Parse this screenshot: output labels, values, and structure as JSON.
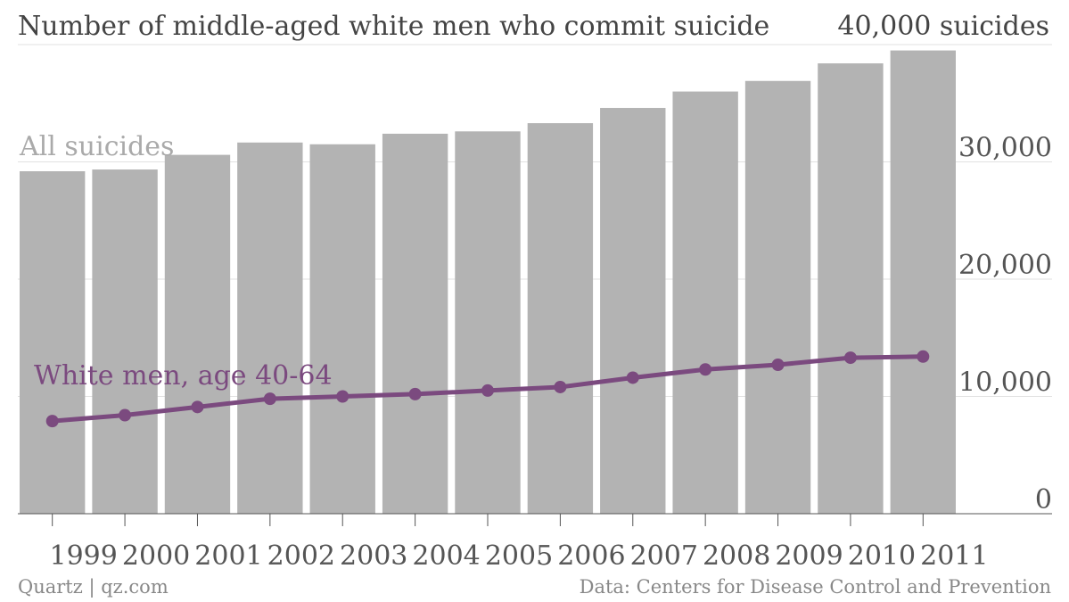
{
  "title": "Number of middle-aged white men who commit suicide",
  "source": "Data: Centers for Disease Control and Prevention",
  "credit": "Quartz | qz.com",
  "colors": {
    "bars": "#b3b3b3",
    "line": "#7b4a7f",
    "bar_label": "#aaaaaa",
    "axis_text": "#555555",
    "grid": "#e2e2e2"
  },
  "chart_data": {
    "type": "bar",
    "categories": [
      "1999",
      "2000",
      "2001",
      "2002",
      "2003",
      "2004",
      "2005",
      "2006",
      "2007",
      "2008",
      "2009",
      "2010",
      "2011"
    ],
    "series": [
      {
        "name": "All suicides",
        "type": "bar",
        "values": [
          29200,
          29350,
          30600,
          31650,
          31500,
          32400,
          32600,
          33300,
          34600,
          36000,
          36900,
          38400,
          39500
        ]
      },
      {
        "name": "White men, age 40-64",
        "type": "line",
        "values": [
          7900,
          8400,
          9100,
          9800,
          10000,
          10200,
          10500,
          10800,
          11600,
          12300,
          12700,
          13300,
          13400
        ]
      }
    ],
    "yticks": [
      "0",
      "10,000",
      "20,000",
      "30,000",
      "40,000 suicides"
    ],
    "ylim": [
      0,
      40000
    ],
    "grid": true,
    "yaxis_position": "right"
  }
}
